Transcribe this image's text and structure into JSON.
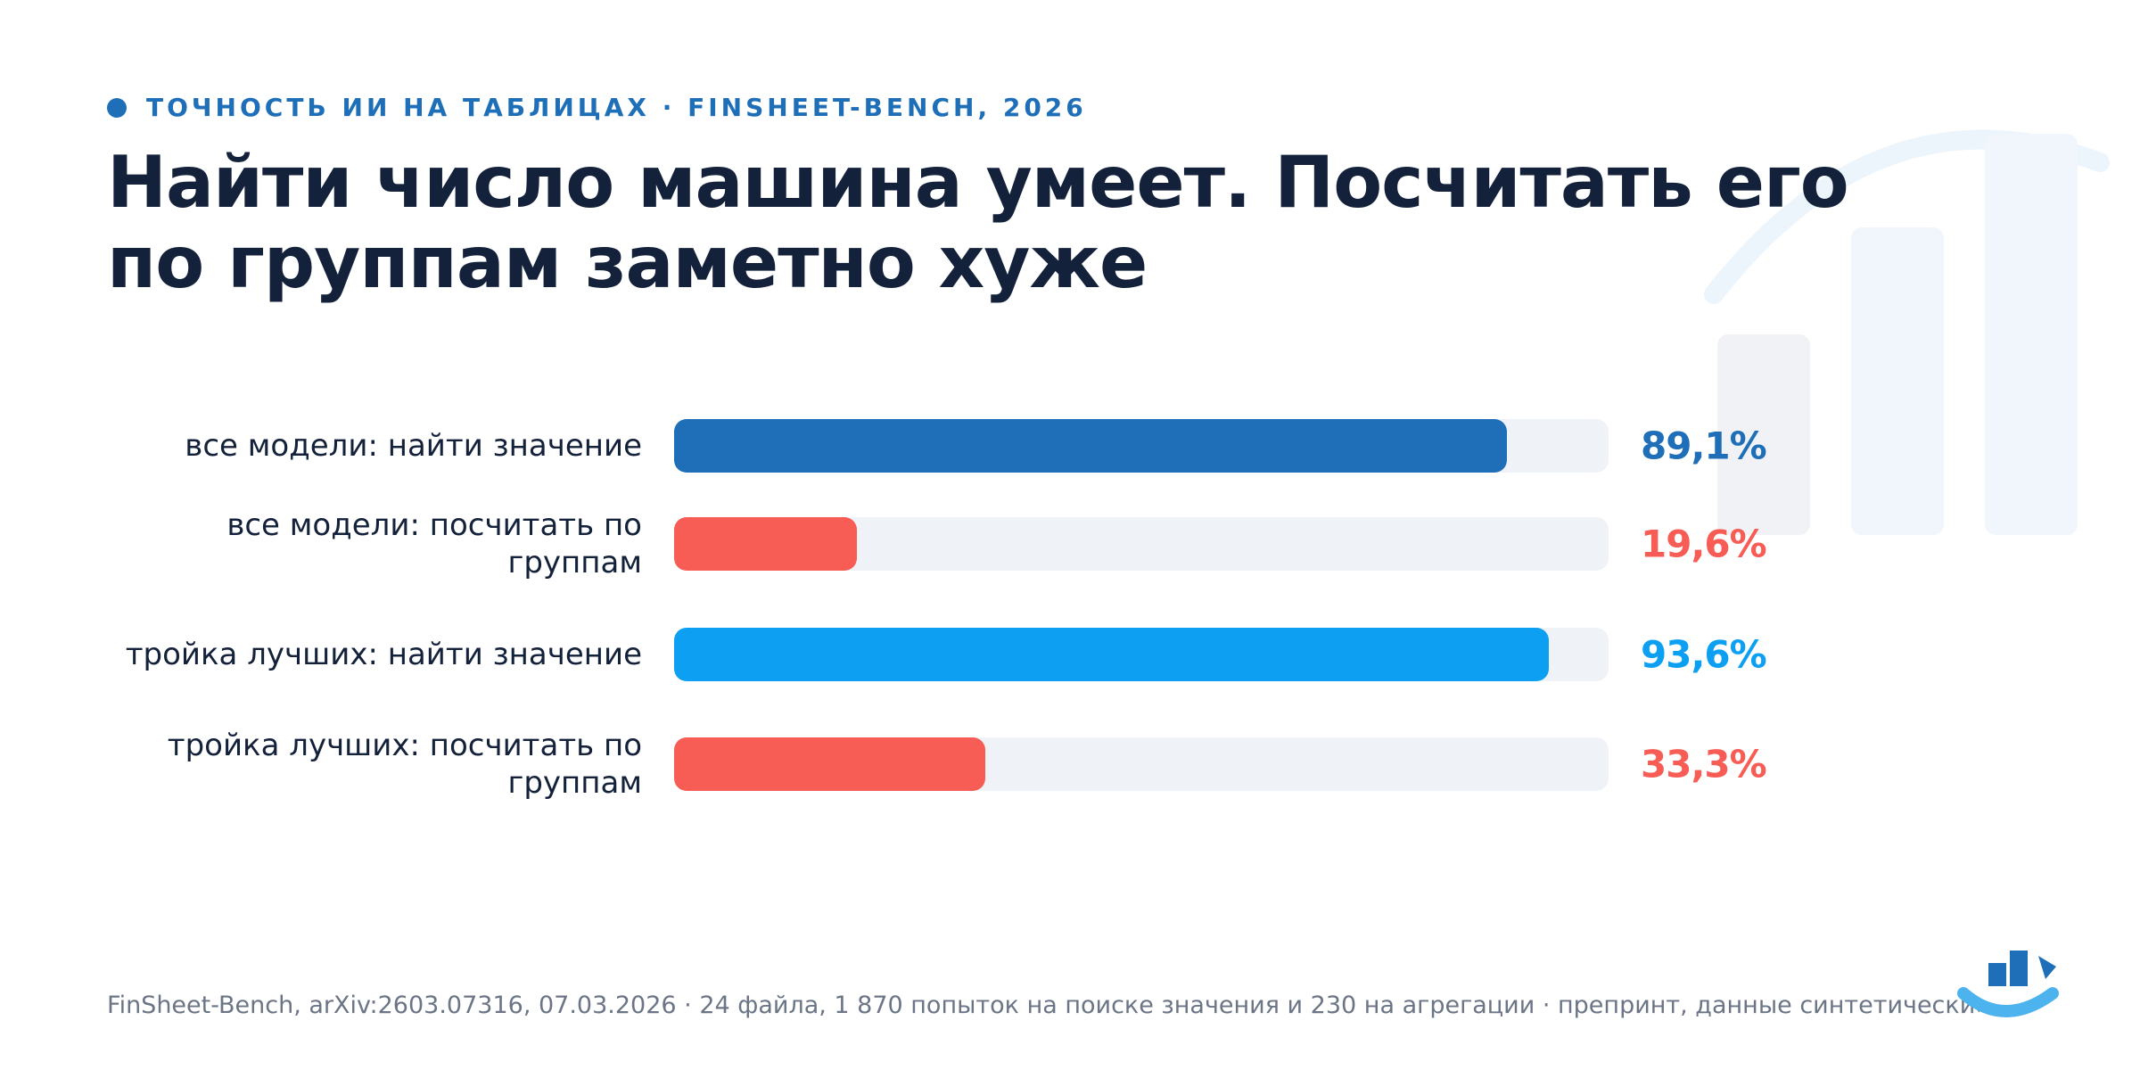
{
  "kicker": "ТОЧНОСТЬ ИИ НА ТАБЛИЦАХ · FINSHEET-BENCH, 2026",
  "headline": "Найти число машина умеет. Посчитать его по группам заметно хуже",
  "footer": "FinSheet-Bench, arXiv:2603.07316, 07.03.2026 · 24 файла, 1 870 попыток на поиске значения и 230 на агрегации · препринт, данные синтетические",
  "colors": {
    "find_all": "#1f6fb8",
    "find_top": "#0da0f2",
    "aggregate": "#f75c55",
    "track": "#eff2f7",
    "text": "#14213a",
    "muted": "#6b7585"
  },
  "chart_data": {
    "type": "bar",
    "orientation": "horizontal",
    "title": "",
    "xlabel": "",
    "ylabel": "",
    "xlim": [
      0,
      100
    ],
    "unit": "%",
    "categories": [
      "все модели: найти значение",
      "все модели: посчитать по группам",
      "тройка лучших: найти значение",
      "тройка лучших: посчитать по группам"
    ],
    "values": [
      89.1,
      19.6,
      93.6,
      33.3
    ],
    "value_labels": [
      "89,1%",
      "19,6%",
      "93,6%",
      "33,3%"
    ],
    "bar_colors": [
      "#1f6fb8",
      "#f75c55",
      "#0da0f2",
      "#f75c55"
    ],
    "grid": false,
    "legend": "none"
  }
}
